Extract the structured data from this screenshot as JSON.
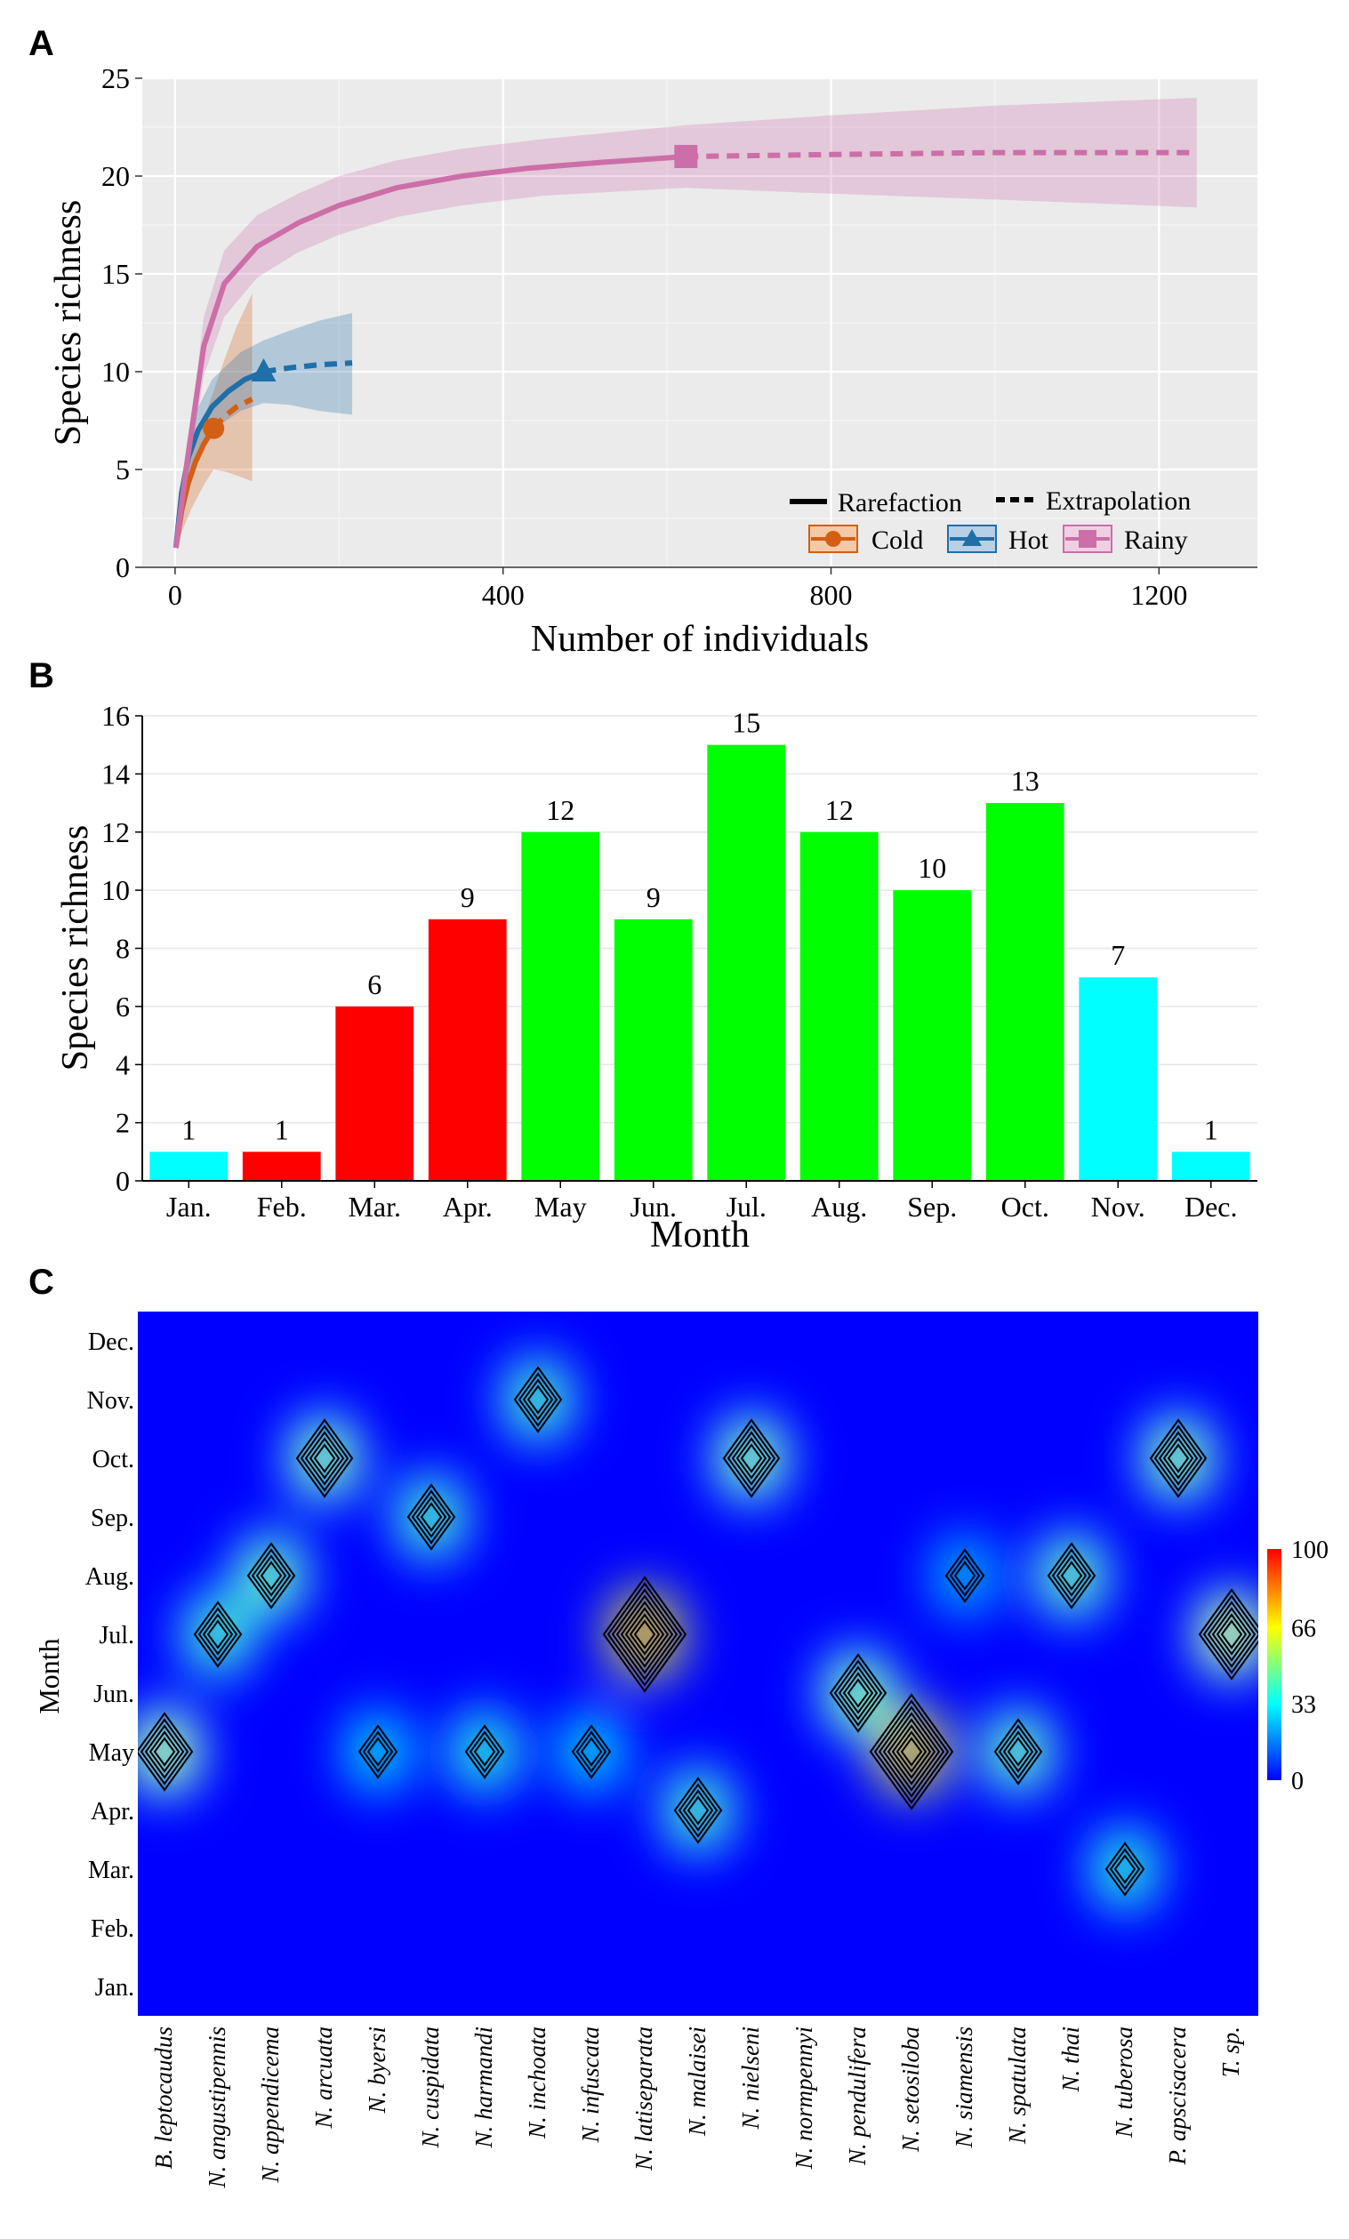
{
  "chart_data": [
    {
      "panel": "A",
      "type": "line",
      "xlabel": "Number of individuals",
      "ylabel": "Species richness",
      "xlim": [
        -40,
        1320
      ],
      "ylim": [
        0,
        25
      ],
      "xticks": [
        0,
        400,
        800,
        1200
      ],
      "yticks": [
        0,
        5,
        10,
        15,
        20,
        25
      ],
      "grid": true,
      "legend": {
        "position": "bottom-right",
        "method_entries": [
          "Rarefaction",
          "Extrapolation"
        ],
        "group_entries": [
          "Cold",
          "Hot",
          "Rainy"
        ]
      },
      "series": [
        {
          "name": "Cold",
          "color": "#d35f15",
          "marker": "circle",
          "observed": [
            47,
            7.1
          ],
          "rarefaction": {
            "x": [
              1,
              8,
              16,
              25,
              35,
              47
            ],
            "y": [
              1,
              2.9,
              4.3,
              5.4,
              6.3,
              7.1
            ]
          },
          "extrapolation": {
            "x": [
              47,
              60,
              75,
              94
            ],
            "y": [
              7.1,
              7.7,
              8.2,
              8.6
            ]
          },
          "ci": {
            "x": [
              1,
              10,
              20,
              35,
              47,
              60,
              75,
              94
            ],
            "lower": [
              1,
              2.0,
              3.0,
              4.2,
              5.0,
              4.9,
              4.7,
              4.4
            ],
            "upper": [
              1,
              3.8,
              5.8,
              7.6,
              9.0,
              10.6,
              12.3,
              14.0
            ]
          }
        },
        {
          "name": "Hot",
          "color": "#1f6fa8",
          "marker": "triangle",
          "observed": [
            108,
            10.0
          ],
          "rarefaction": {
            "x": [
              1,
              8,
              16,
              28,
              45,
              65,
              85,
              108
            ],
            "y": [
              1,
              3.8,
              5.6,
              7.0,
              8.2,
              9.0,
              9.6,
              10.0
            ]
          },
          "extrapolation": {
            "x": [
              108,
              140,
              175,
              216
            ],
            "y": [
              10.0,
              10.2,
              10.35,
              10.45
            ]
          },
          "ci": {
            "x": [
              1,
              20,
              45,
              80,
              108,
              140,
              175,
              216
            ],
            "lower": [
              1,
              4.8,
              7.0,
              8.0,
              8.4,
              8.3,
              8.0,
              7.8
            ],
            "upper": [
              1,
              7.5,
              9.6,
              11.0,
              11.6,
              12.1,
              12.6,
              13.0
            ]
          }
        },
        {
          "name": "Rainy",
          "color": "#cc6ea8",
          "marker": "square",
          "observed": [
            623,
            21.0
          ],
          "rarefaction": {
            "x": [
              1,
              15,
              35,
              60,
              100,
              150,
              200,
              270,
              350,
              430,
              520,
              623
            ],
            "y": [
              1,
              5.5,
              11.3,
              14.5,
              16.4,
              17.6,
              18.5,
              19.4,
              20.0,
              20.4,
              20.7,
              21.0
            ]
          },
          "extrapolation": {
            "x": [
              623,
              800,
              1000,
              1246
            ],
            "y": [
              21.0,
              21.1,
              21.2,
              21.2
            ]
          },
          "ci": {
            "x": [
              1,
              35,
              60,
              100,
              150,
              200,
              270,
              350,
              450,
              623,
              800,
              1000,
              1246
            ],
            "lower": [
              1,
              9.8,
              12.8,
              14.8,
              16.1,
              17.0,
              17.9,
              18.5,
              19.0,
              19.4,
              19.1,
              18.8,
              18.4
            ],
            "upper": [
              1,
              12.8,
              16.2,
              18.0,
              19.1,
              20.0,
              20.8,
              21.4,
              21.9,
              22.6,
              23.1,
              23.6,
              24.0
            ]
          }
        }
      ]
    },
    {
      "panel": "B",
      "type": "bar",
      "xlabel": "Month",
      "ylabel": "Species richness",
      "ylim": [
        0,
        16
      ],
      "yticks": [
        0,
        2,
        4,
        6,
        8,
        10,
        12,
        14,
        16
      ],
      "grid": true,
      "categories": [
        "Jan.",
        "Feb.",
        "Mar.",
        "Apr.",
        "May",
        "Jun.",
        "Jul.",
        "Aug.",
        "Sep.",
        "Oct.",
        "Nov.",
        "Dec."
      ],
      "values": [
        1,
        1,
        6,
        9,
        12,
        9,
        15,
        12,
        10,
        13,
        7,
        1
      ],
      "value_labels": [
        "1",
        "1",
        "6",
        "9",
        "12",
        "9",
        "15",
        "12",
        "10",
        "13",
        "7",
        "1"
      ],
      "colors": [
        "#00ffff",
        "#ff0000",
        "#ff0000",
        "#ff0000",
        "#00ff00",
        "#00ff00",
        "#00ff00",
        "#00ff00",
        "#00ff00",
        "#00ff00",
        "#00ffff",
        "#00ffff"
      ]
    },
    {
      "panel": "C",
      "type": "heatmap",
      "ylabel": "Month",
      "y_categories": [
        "Dec.",
        "Nov.",
        "Oct.",
        "Sep.",
        "Aug.",
        "Jul.",
        "Jun.",
        "May",
        "Apr.",
        "Mar.",
        "Feb.",
        "Jan."
      ],
      "x_categories": [
        "B. leptocaudus",
        "N. angustipennis",
        "N. appendicema",
        "N. arcuata",
        "N. byersi",
        "N. cuspidata",
        "N. harmandi",
        "N. inchoata",
        "N. infuscata",
        "N. latiseparata",
        "N. malaisei",
        "N. nielseni",
        "N. normpennyi",
        "N. pendulifera",
        "N. setosiloba",
        "N. siamensis",
        "N. spatulata",
        "N. thai",
        "N. tuberosa",
        "P. apscisacera",
        "T. sp."
      ],
      "colorbar": {
        "ticks": [
          "100",
          "66",
          "33",
          "0"
        ],
        "range": [
          0,
          100
        ],
        "colors": [
          "#0000ff",
          "#00ffff",
          "#ffff00",
          "#ff0000"
        ]
      },
      "hotspots": [
        {
          "species": "B. leptocaudus",
          "month": "May",
          "value": 62
        },
        {
          "species": "N. angustipennis",
          "month": "Jul.",
          "value": 45
        },
        {
          "species": "N. appendicema",
          "month": "Aug.",
          "value": 50
        },
        {
          "species": "N. arcuata",
          "month": "Oct.",
          "value": 55
        },
        {
          "species": "N. byersi",
          "month": "May",
          "value": 30
        },
        {
          "species": "N. cuspidata",
          "month": "Sep.",
          "value": 45
        },
        {
          "species": "N. harmandi",
          "month": "May",
          "value": 40
        },
        {
          "species": "N. inchoata",
          "month": "Nov.",
          "value": 45
        },
        {
          "species": "N. infuscata",
          "month": "May",
          "value": 30
        },
        {
          "species": "N. latiseparata",
          "month": "Jul.",
          "value": 100
        },
        {
          "species": "N. malaisei",
          "month": "Apr.",
          "value": 45
        },
        {
          "species": "N. nielseni",
          "month": "Oct.",
          "value": 55
        },
        {
          "species": "N. pendulifera",
          "month": "Jun.",
          "value": 55
        },
        {
          "species": "N. setosiloba",
          "month": "May",
          "value": 95
        },
        {
          "species": "N. siamensis",
          "month": "Aug.",
          "value": 25
        },
        {
          "species": "N. spatulata",
          "month": "May",
          "value": 50
        },
        {
          "species": "N. thai",
          "month": "Aug.",
          "value": 50
        },
        {
          "species": "N. tuberosa",
          "month": "Mar.",
          "value": 40
        },
        {
          "species": "P. apscisacera",
          "month": "Oct.",
          "value": 55
        },
        {
          "species": "T. sp.",
          "month": "Jul.",
          "value": 66
        }
      ]
    }
  ]
}
